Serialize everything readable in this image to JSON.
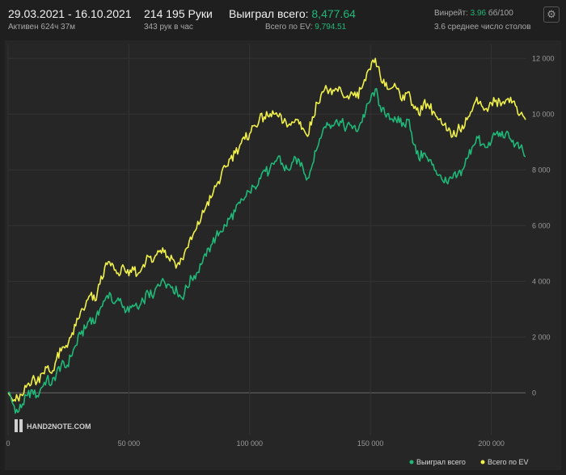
{
  "header": {
    "date_range": "29.03.2021 - 16.10.2021",
    "active": "Активен 624ч 37м",
    "hands": "214 195 Руки",
    "hands_per_hour": "343 рук в час",
    "won_label": "Выиграл всего:",
    "won_value": "8,477.64",
    "ev_label": "Всего по EV:",
    "ev_value": "9,794.51",
    "winrate_label": "Винрейт:",
    "winrate_value": "3.96",
    "winrate_unit": "бб/100",
    "avg_tables": "3.6 среднее число столов"
  },
  "settings_icon": "gear-icon",
  "watermark": "HAND2NOTE.COM",
  "colors": {
    "background": "#1f1f1f",
    "plot_background": "#262626",
    "won": "#1fb878",
    "ev": "#f0f04a",
    "grid": "#333333",
    "zero_line": "#6a6a6a"
  },
  "chart_data": {
    "type": "line",
    "xlim": [
      0,
      214195
    ],
    "ylim": [
      -1500,
      12500
    ],
    "x_ticks": [
      0,
      50000,
      100000,
      150000,
      200000
    ],
    "x_tick_labels": [
      "0",
      "50 000",
      "100 000",
      "150 000",
      "200 000"
    ],
    "y_ticks": [
      0,
      2000,
      4000,
      6000,
      8000,
      10000,
      12000
    ],
    "y_tick_labels": [
      "0",
      "2 000",
      "4 000",
      "6 000",
      "8 000",
      "10 000",
      "12 000"
    ],
    "grid": true,
    "legend_position": "bottom-right",
    "series": [
      {
        "name": "Выиграл всего",
        "color": "#1fb878",
        "points": [
          [
            0,
            0
          ],
          [
            2000,
            -400
          ],
          [
            4000,
            -700
          ],
          [
            6000,
            -400
          ],
          [
            8000,
            -100
          ],
          [
            10000,
            100
          ],
          [
            12000,
            -100
          ],
          [
            14000,
            200
          ],
          [
            16000,
            500
          ],
          [
            18000,
            300
          ],
          [
            20000,
            700
          ],
          [
            22000,
            1000
          ],
          [
            24000,
            900
          ],
          [
            26000,
            1300
          ],
          [
            28000,
            1700
          ],
          [
            30000,
            2100
          ],
          [
            32000,
            2300
          ],
          [
            34000,
            2700
          ],
          [
            36000,
            2500
          ],
          [
            38000,
            3000
          ],
          [
            40000,
            3300
          ],
          [
            42000,
            3600
          ],
          [
            44000,
            3200
          ],
          [
            46000,
            3300
          ],
          [
            48000,
            3100
          ],
          [
            50000,
            2900
          ],
          [
            52000,
            3100
          ],
          [
            54000,
            3000
          ],
          [
            56000,
            3300
          ],
          [
            58000,
            3600
          ],
          [
            60000,
            3400
          ],
          [
            62000,
            3900
          ],
          [
            64000,
            4100
          ],
          [
            66000,
            3900
          ],
          [
            68000,
            3800
          ],
          [
            70000,
            3600
          ],
          [
            72000,
            3400
          ],
          [
            74000,
            3800
          ],
          [
            76000,
            4100
          ],
          [
            78000,
            4300
          ],
          [
            80000,
            4600
          ],
          [
            82000,
            4900
          ],
          [
            84000,
            5300
          ],
          [
            86000,
            5600
          ],
          [
            88000,
            5800
          ],
          [
            90000,
            6000
          ],
          [
            92000,
            6300
          ],
          [
            94000,
            6500
          ],
          [
            96000,
            6800
          ],
          [
            98000,
            7000
          ],
          [
            100000,
            7200
          ],
          [
            102000,
            7400
          ],
          [
            104000,
            7700
          ],
          [
            106000,
            8000
          ],
          [
            108000,
            7900
          ],
          [
            110000,
            8200
          ],
          [
            112000,
            8500
          ],
          [
            114000,
            8100
          ],
          [
            116000,
            8000
          ],
          [
            118000,
            8300
          ],
          [
            120000,
            8400
          ],
          [
            122000,
            8100
          ],
          [
            124000,
            7700
          ],
          [
            126000,
            8200
          ],
          [
            128000,
            8800
          ],
          [
            130000,
            9300
          ],
          [
            132000,
            9700
          ],
          [
            134000,
            9600
          ],
          [
            136000,
            9800
          ],
          [
            138000,
            9700
          ],
          [
            140000,
            9500
          ],
          [
            142000,
            9600
          ],
          [
            144000,
            9400
          ],
          [
            146000,
            9700
          ],
          [
            148000,
            10100
          ],
          [
            150000,
            10500
          ],
          [
            152000,
            10900
          ],
          [
            154000,
            10300
          ],
          [
            156000,
            10000
          ],
          [
            158000,
            9800
          ],
          [
            160000,
            9900
          ],
          [
            162000,
            9700
          ],
          [
            164000,
            9600
          ],
          [
            166000,
            9800
          ],
          [
            168000,
            8900
          ],
          [
            170000,
            8400
          ],
          [
            172000,
            8600
          ],
          [
            174000,
            8300
          ],
          [
            176000,
            8200
          ],
          [
            178000,
            7800
          ],
          [
            180000,
            7600
          ],
          [
            182000,
            7500
          ],
          [
            184000,
            7700
          ],
          [
            186000,
            7800
          ],
          [
            188000,
            8000
          ],
          [
            190000,
            8400
          ],
          [
            192000,
            8800
          ],
          [
            194000,
            9200
          ],
          [
            196000,
            8900
          ],
          [
            198000,
            8800
          ],
          [
            200000,
            9000
          ],
          [
            202000,
            9300
          ],
          [
            204000,
            9200
          ],
          [
            206000,
            9300
          ],
          [
            208000,
            9100
          ],
          [
            210000,
            8900
          ],
          [
            212000,
            8800
          ],
          [
            214195,
            8477.64
          ]
        ]
      },
      {
        "name": "Всего по EV",
        "color": "#f0f04a",
        "points": [
          [
            0,
            0
          ],
          [
            2000,
            -300
          ],
          [
            4000,
            -200
          ],
          [
            6000,
            -100
          ],
          [
            8000,
            300
          ],
          [
            10000,
            500
          ],
          [
            12000,
            400
          ],
          [
            14000,
            700
          ],
          [
            16000,
            900
          ],
          [
            18000,
            700
          ],
          [
            20000,
            1200
          ],
          [
            22000,
            1500
          ],
          [
            24000,
            1700
          ],
          [
            26000,
            2000
          ],
          [
            28000,
            2400
          ],
          [
            30000,
            2900
          ],
          [
            32000,
            3100
          ],
          [
            34000,
            3500
          ],
          [
            36000,
            3300
          ],
          [
            38000,
            3900
          ],
          [
            40000,
            4500
          ],
          [
            42000,
            4700
          ],
          [
            44000,
            4400
          ],
          [
            46000,
            4200
          ],
          [
            48000,
            4500
          ],
          [
            50000,
            4200
          ],
          [
            52000,
            4400
          ],
          [
            54000,
            4300
          ],
          [
            56000,
            4600
          ],
          [
            58000,
            4900
          ],
          [
            60000,
            4700
          ],
          [
            62000,
            5100
          ],
          [
            64000,
            5200
          ],
          [
            66000,
            4900
          ],
          [
            68000,
            4800
          ],
          [
            70000,
            4600
          ],
          [
            72000,
            4800
          ],
          [
            74000,
            5200
          ],
          [
            76000,
            5500
          ],
          [
            78000,
            5900
          ],
          [
            80000,
            6300
          ],
          [
            82000,
            6700
          ],
          [
            84000,
            7000
          ],
          [
            86000,
            7400
          ],
          [
            88000,
            7700
          ],
          [
            90000,
            8100
          ],
          [
            92000,
            8400
          ],
          [
            94000,
            8600
          ],
          [
            96000,
            8900
          ],
          [
            98000,
            9100
          ],
          [
            100000,
            9300
          ],
          [
            102000,
            9600
          ],
          [
            104000,
            9800
          ],
          [
            106000,
            9900
          ],
          [
            108000,
            9900
          ],
          [
            110000,
            10000
          ],
          [
            112000,
            9900
          ],
          [
            114000,
            9700
          ],
          [
            116000,
            9600
          ],
          [
            118000,
            9700
          ],
          [
            120000,
            9800
          ],
          [
            122000,
            9500
          ],
          [
            124000,
            9200
          ],
          [
            126000,
            9900
          ],
          [
            128000,
            10400
          ],
          [
            130000,
            10800
          ],
          [
            132000,
            10900
          ],
          [
            134000,
            10700
          ],
          [
            136000,
            10900
          ],
          [
            138000,
            10800
          ],
          [
            140000,
            10600
          ],
          [
            142000,
            10800
          ],
          [
            144000,
            10600
          ],
          [
            146000,
            10900
          ],
          [
            148000,
            11200
          ],
          [
            150000,
            11600
          ],
          [
            152000,
            12000
          ],
          [
            154000,
            11400
          ],
          [
            156000,
            11000
          ],
          [
            158000,
            10900
          ],
          [
            160000,
            11100
          ],
          [
            162000,
            10800
          ],
          [
            164000,
            10500
          ],
          [
            166000,
            10800
          ],
          [
            168000,
            10200
          ],
          [
            170000,
            10000
          ],
          [
            172000,
            10400
          ],
          [
            174000,
            10300
          ],
          [
            176000,
            10100
          ],
          [
            178000,
            9800
          ],
          [
            180000,
            9600
          ],
          [
            182000,
            9400
          ],
          [
            184000,
            9200
          ],
          [
            186000,
            9400
          ],
          [
            188000,
            9600
          ],
          [
            190000,
            9800
          ],
          [
            192000,
            10100
          ],
          [
            194000,
            10600
          ],
          [
            196000,
            10300
          ],
          [
            198000,
            10200
          ],
          [
            200000,
            10400
          ],
          [
            202000,
            10500
          ],
          [
            204000,
            10300
          ],
          [
            206000,
            10500
          ],
          [
            208000,
            10600
          ],
          [
            210000,
            10300
          ],
          [
            212000,
            10000
          ],
          [
            214195,
            9794.51
          ]
        ]
      }
    ]
  }
}
